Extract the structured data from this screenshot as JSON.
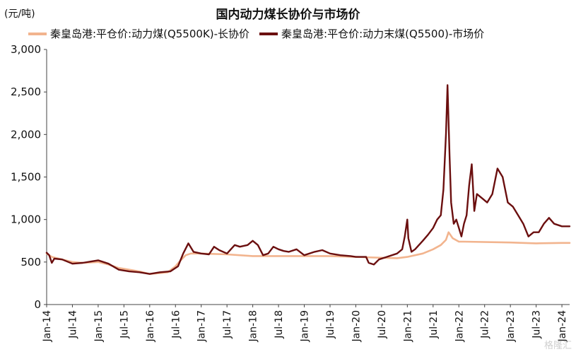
{
  "chart_data": {
    "type": "line",
    "title": "国内动力煤长协价与市场价",
    "unit_label": "(元/吨)",
    "ylim": [
      0,
      3000
    ],
    "yticks": [
      "3,000",
      "2,500",
      "2,000",
      "1,500",
      "1,000",
      "500",
      "0"
    ],
    "ytick_values": [
      3000,
      2500,
      2000,
      1500,
      1000,
      500,
      0
    ],
    "xlim": [
      2014.0,
      2024.15
    ],
    "xticks": [
      {
        "label": "Jan-14",
        "v": 2014.0
      },
      {
        "label": "Jul-14",
        "v": 2014.5
      },
      {
        "label": "Jan-15",
        "v": 2015.0
      },
      {
        "label": "Jul-15",
        "v": 2015.5
      },
      {
        "label": "Jan-16",
        "v": 2016.0
      },
      {
        "label": "Jul-16",
        "v": 2016.5
      },
      {
        "label": "Jan-17",
        "v": 2017.0
      },
      {
        "label": "Jul-17",
        "v": 2017.5
      },
      {
        "label": "Jan-18",
        "v": 2018.0
      },
      {
        "label": "Jul-18",
        "v": 2018.5
      },
      {
        "label": "Jan-19",
        "v": 2019.0
      },
      {
        "label": "Jul-19",
        "v": 2019.5
      },
      {
        "label": "Jan-20",
        "v": 2020.0
      },
      {
        "label": "Jul-20",
        "v": 2020.5
      },
      {
        "label": "Jan-21",
        "v": 2021.0
      },
      {
        "label": "Jul-21",
        "v": 2021.5
      },
      {
        "label": "Jan-22",
        "v": 2022.0
      },
      {
        "label": "Jul-22",
        "v": 2022.5
      },
      {
        "label": "Jan-23",
        "v": 2023.0
      },
      {
        "label": "Jul-23",
        "v": 2023.5
      },
      {
        "label": "Jan-24",
        "v": 2024.0
      }
    ],
    "grid": false,
    "legend_position": "top",
    "series": [
      {
        "name": "秦皇岛港:平仓价:动力煤(Q5500K)-长协价",
        "color": "#f2b48e",
        "points": [
          [
            2014.0,
            600
          ],
          [
            2014.1,
            560
          ],
          [
            2014.3,
            530
          ],
          [
            2014.5,
            500
          ],
          [
            2014.7,
            490
          ],
          [
            2015.0,
            500
          ],
          [
            2015.2,
            470
          ],
          [
            2015.4,
            430
          ],
          [
            2015.6,
            410
          ],
          [
            2015.8,
            390
          ],
          [
            2016.0,
            360
          ],
          [
            2016.2,
            370
          ],
          [
            2016.35,
            380
          ],
          [
            2016.5,
            450
          ],
          [
            2016.6,
            520
          ],
          [
            2016.7,
            580
          ],
          [
            2016.8,
            600
          ],
          [
            2017.0,
            600
          ],
          [
            2017.5,
            590
          ],
          [
            2018.0,
            570
          ],
          [
            2018.5,
            570
          ],
          [
            2019.0,
            570
          ],
          [
            2019.5,
            570
          ],
          [
            2020.0,
            560
          ],
          [
            2020.5,
            550
          ],
          [
            2020.8,
            545
          ],
          [
            2021.0,
            560
          ],
          [
            2021.3,
            600
          ],
          [
            2021.5,
            650
          ],
          [
            2021.65,
            700
          ],
          [
            2021.75,
            760
          ],
          [
            2021.8,
            850
          ],
          [
            2021.88,
            780
          ],
          [
            2022.0,
            740
          ],
          [
            2022.1,
            740
          ],
          [
            2023.0,
            730
          ],
          [
            2023.5,
            720
          ],
          [
            2024.0,
            725
          ],
          [
            2024.15,
            725
          ]
        ]
      },
      {
        "name": "秦皇岛港:平仓价:动力末煤(Q5500)-市场价",
        "color": "#6b0f0f",
        "points": [
          [
            2014.0,
            610
          ],
          [
            2014.05,
            580
          ],
          [
            2014.1,
            490
          ],
          [
            2014.15,
            540
          ],
          [
            2014.3,
            530
          ],
          [
            2014.5,
            480
          ],
          [
            2014.7,
            490
          ],
          [
            2015.0,
            520
          ],
          [
            2015.2,
            480
          ],
          [
            2015.4,
            410
          ],
          [
            2015.6,
            390
          ],
          [
            2015.8,
            380
          ],
          [
            2016.0,
            360
          ],
          [
            2016.2,
            380
          ],
          [
            2016.4,
            390
          ],
          [
            2016.55,
            450
          ],
          [
            2016.65,
            600
          ],
          [
            2016.75,
            720
          ],
          [
            2016.85,
            620
          ],
          [
            2017.0,
            600
          ],
          [
            2017.15,
            590
          ],
          [
            2017.25,
            680
          ],
          [
            2017.35,
            640
          ],
          [
            2017.5,
            600
          ],
          [
            2017.65,
            700
          ],
          [
            2017.75,
            680
          ],
          [
            2017.9,
            700
          ],
          [
            2018.0,
            750
          ],
          [
            2018.1,
            700
          ],
          [
            2018.2,
            580
          ],
          [
            2018.3,
            600
          ],
          [
            2018.4,
            680
          ],
          [
            2018.5,
            650
          ],
          [
            2018.6,
            630
          ],
          [
            2018.7,
            620
          ],
          [
            2018.85,
            650
          ],
          [
            2019.0,
            580
          ],
          [
            2019.2,
            620
          ],
          [
            2019.35,
            640
          ],
          [
            2019.5,
            600
          ],
          [
            2019.7,
            580
          ],
          [
            2019.9,
            570
          ],
          [
            2020.0,
            560
          ],
          [
            2020.2,
            560
          ],
          [
            2020.25,
            490
          ],
          [
            2020.35,
            470
          ],
          [
            2020.45,
            530
          ],
          [
            2020.6,
            560
          ],
          [
            2020.8,
            600
          ],
          [
            2020.9,
            650
          ],
          [
            2020.95,
            800
          ],
          [
            2021.0,
            1000
          ],
          [
            2021.02,
            780
          ],
          [
            2021.08,
            620
          ],
          [
            2021.15,
            650
          ],
          [
            2021.3,
            750
          ],
          [
            2021.4,
            820
          ],
          [
            2021.5,
            900
          ],
          [
            2021.58,
            1000
          ],
          [
            2021.65,
            1050
          ],
          [
            2021.7,
            1350
          ],
          [
            2021.75,
            2000
          ],
          [
            2021.78,
            2580
          ],
          [
            2021.82,
            1750
          ],
          [
            2021.85,
            1200
          ],
          [
            2021.9,
            950
          ],
          [
            2021.95,
            1000
          ],
          [
            2022.0,
            900
          ],
          [
            2022.05,
            800
          ],
          [
            2022.1,
            950
          ],
          [
            2022.15,
            1050
          ],
          [
            2022.2,
            1400
          ],
          [
            2022.25,
            1650
          ],
          [
            2022.3,
            1100
          ],
          [
            2022.35,
            1300
          ],
          [
            2022.45,
            1250
          ],
          [
            2022.55,
            1200
          ],
          [
            2022.65,
            1300
          ],
          [
            2022.75,
            1600
          ],
          [
            2022.85,
            1500
          ],
          [
            2022.95,
            1200
          ],
          [
            2023.05,
            1150
          ],
          [
            2023.15,
            1050
          ],
          [
            2023.25,
            950
          ],
          [
            2023.35,
            800
          ],
          [
            2023.45,
            850
          ],
          [
            2023.55,
            850
          ],
          [
            2023.65,
            950
          ],
          [
            2023.75,
            1020
          ],
          [
            2023.85,
            950
          ],
          [
            2024.0,
            920
          ],
          [
            2024.15,
            920
          ]
        ]
      }
    ]
  },
  "watermark": "格隆汇"
}
